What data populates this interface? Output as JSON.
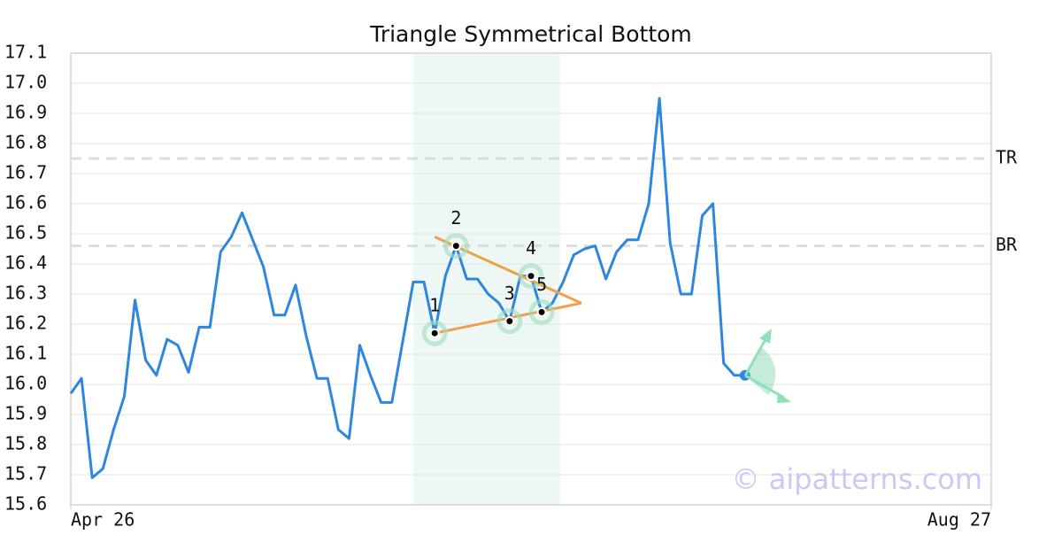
{
  "chart_data": {
    "type": "line",
    "title": "Triangle Symmetrical Bottom",
    "x": [
      0,
      1,
      2,
      3,
      4,
      5,
      6,
      7,
      8,
      9,
      10,
      11,
      12,
      13,
      14,
      15,
      16,
      17,
      18,
      19,
      20,
      21,
      22,
      23,
      24,
      25,
      26,
      27,
      28,
      29,
      30,
      31,
      32,
      33,
      34,
      35,
      36,
      37,
      38,
      39,
      40,
      41,
      42,
      43,
      44,
      45,
      46,
      47,
      48,
      49,
      50,
      51,
      52,
      53,
      54,
      55,
      56,
      57,
      58,
      59,
      60,
      61,
      62,
      63
    ],
    "values": [
      15.97,
      16.02,
      15.69,
      15.72,
      15.85,
      15.96,
      16.28,
      16.08,
      16.03,
      16.15,
      16.13,
      16.04,
      16.19,
      16.19,
      16.44,
      16.49,
      16.57,
      16.48,
      16.39,
      16.23,
      16.23,
      16.33,
      16.16,
      16.02,
      16.02,
      15.85,
      15.82,
      16.13,
      16.03,
      15.94,
      15.94,
      16.14,
      16.34,
      16.34,
      16.17,
      16.36,
      16.46,
      16.35,
      16.35,
      16.3,
      16.27,
      16.21,
      16.36,
      16.36,
      16.24,
      16.27,
      16.34,
      16.43,
      16.45,
      16.46,
      16.35,
      16.44,
      16.48,
      16.48,
      16.6,
      16.95,
      16.47,
      16.3,
      16.3,
      16.56,
      16.6,
      16.07,
      16.03,
      16.03
    ],
    "color": "#2e86de",
    "xlim": [
      0,
      86
    ],
    "xticks": [
      {
        "value": 0,
        "label": "Apr 26"
      },
      {
        "value": 86,
        "label": "Aug 27"
      }
    ],
    "ylim": [
      15.6,
      17.1
    ],
    "yticks": [
      15.6,
      15.7,
      15.8,
      15.9,
      {
        "value": 16,
        "label": "16.0"
      },
      16.1,
      16.2,
      16.3,
      16.4,
      16.5,
      16.6,
      16.7,
      16.8,
      16.9,
      {
        "value": 17,
        "label": "17.0"
      },
      17.1
    ],
    "grid": true,
    "highlight": [
      32,
      45.7
    ],
    "levels": [
      {
        "label": "TR",
        "value": 16.75
      },
      {
        "label": "BR",
        "value": 16.46
      }
    ],
    "trendlines": [
      {
        "x": [
          34,
          47.7
        ],
        "y": [
          16.49,
          16.27
        ]
      },
      {
        "x": [
          34,
          47.7
        ],
        "y": [
          16.17,
          16.27
        ]
      }
    ],
    "trend_color": "#f0a04b",
    "pattern_points": [
      {
        "label": "1",
        "x": 34,
        "y": 16.17
      },
      {
        "label": "2",
        "x": 36,
        "y": 16.46
      },
      {
        "label": "3",
        "x": 41,
        "y": 16.21
      },
      {
        "label": "4",
        "x": 43,
        "y": 16.36
      },
      {
        "label": "5",
        "x": 44,
        "y": 16.24
      }
    ],
    "watermark": "© aipatterns.com"
  }
}
